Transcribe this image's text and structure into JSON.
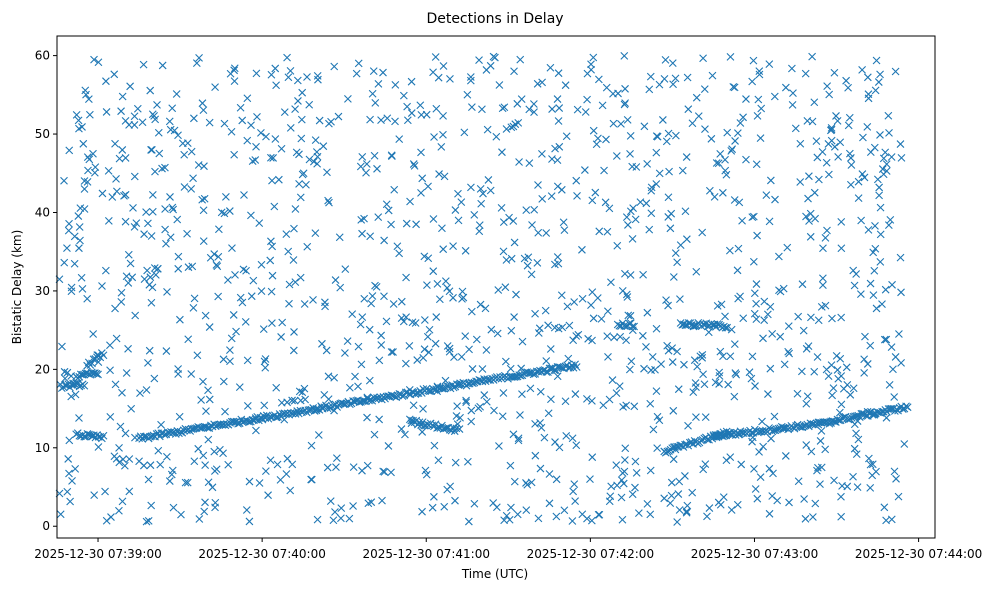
{
  "chart_data": {
    "type": "scatter",
    "title": "Detections in Delay",
    "xlabel": "Time (UTC)",
    "ylabel": "Bistatic Delay (km)",
    "x_ticks": [
      "2025-12-30 07:39:00",
      "2025-12-30 07:40:00",
      "2025-12-30 07:41:00",
      "2025-12-30 07:42:00",
      "2025-12-30 07:43:00",
      "2025-12-30 07:44:00"
    ],
    "y_ticks": [
      "0",
      "10",
      "20",
      "30",
      "40",
      "50",
      "60"
    ],
    "xlim": [
      "2025-12-30 07:38:45",
      "2025-12-30 07:44:06"
    ],
    "ylim": [
      -1.5,
      62.5
    ],
    "marker": "x",
    "color": "#1f77b4",
    "grid": false,
    "tracks": [
      {
        "x": [
          "2025-12-30 07:38:45",
          "2025-12-30 07:38:55"
        ],
        "y": [
          17.8,
          18.1
        ]
      },
      {
        "x": [
          "2025-12-30 07:38:52",
          "2025-12-30 07:39:00"
        ],
        "y": [
          19.0,
          19.6
        ]
      },
      {
        "x": [
          "2025-12-30 07:38:56",
          "2025-12-30 07:39:02"
        ],
        "y": [
          20.5,
          22.0
        ]
      },
      {
        "x": [
          "2025-12-30 07:38:52",
          "2025-12-30 07:39:02"
        ],
        "y": [
          11.7,
          11.3
        ]
      },
      {
        "x": [
          "2025-12-30 07:39:15",
          "2025-12-30 07:41:55"
        ],
        "y": [
          11.2,
          20.5
        ]
      },
      {
        "x": [
          "2025-12-30 07:40:54",
          "2025-12-30 07:41:11"
        ],
        "y": [
          13.4,
          12.3
        ]
      },
      {
        "x": [
          "2025-12-30 07:42:10",
          "2025-12-30 07:42:16"
        ],
        "y": [
          25.8,
          25.6
        ]
      },
      {
        "x": [
          "2025-12-30 07:42:33",
          "2025-12-30 07:42:50"
        ],
        "y": [
          25.8,
          25.5
        ]
      },
      {
        "x": [
          "2025-12-30 07:42:27",
          "2025-12-30 07:42:51"
        ],
        "y": [
          9.5,
          12.0
        ]
      },
      {
        "x": [
          "2025-12-30 07:42:45",
          "2025-12-30 07:43:28"
        ],
        "y": [
          11.5,
          13.2
        ]
      },
      {
        "x": [
          "2025-12-30 07:43:28",
          "2025-12-30 07:43:56"
        ],
        "y": [
          13.4,
          15.2
        ]
      }
    ],
    "noise": {
      "count": 1350,
      "x_range": [
        "2025-12-30 07:38:45",
        "2025-12-30 07:43:55"
      ],
      "y_range": [
        0.5,
        60
      ]
    }
  }
}
